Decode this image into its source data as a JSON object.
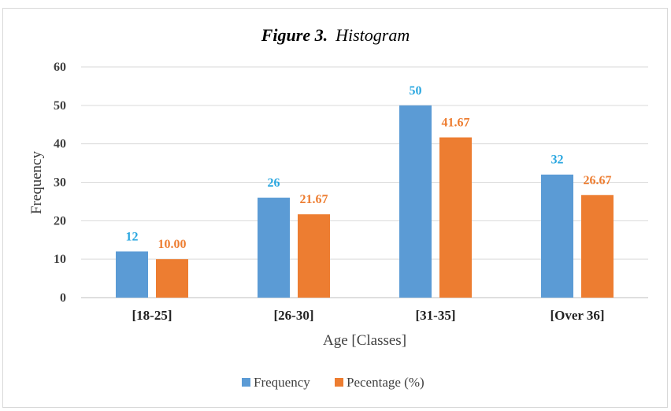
{
  "chart_data": {
    "type": "bar",
    "title_bold": "Figure 3.",
    "title_rest": "Histogram",
    "xlabel": "Age [Classes]",
    "ylabel": "Frequency",
    "categories": [
      "[18-25]",
      "[26-30]",
      "[31-35]",
      "[Over 36]"
    ],
    "series": [
      {
        "name": "Frequency",
        "values": [
          12,
          26,
          50,
          32
        ],
        "labels": [
          "12",
          "26",
          "50",
          "32"
        ],
        "color": "#5b9bd5",
        "label_color": "#2aa7e0"
      },
      {
        "name": "Pecentage (%)",
        "values": [
          10.0,
          21.67,
          41.67,
          26.67
        ],
        "labels": [
          "10.00",
          "21.67",
          "41.67",
          "26.67"
        ],
        "color": "#ed7d31",
        "label_color": "#ed7d31"
      }
    ],
    "ylim": [
      0,
      60
    ],
    "yticks": [
      0,
      10,
      20,
      30,
      40,
      50,
      60
    ],
    "grid": true,
    "legend_position": "bottom"
  }
}
